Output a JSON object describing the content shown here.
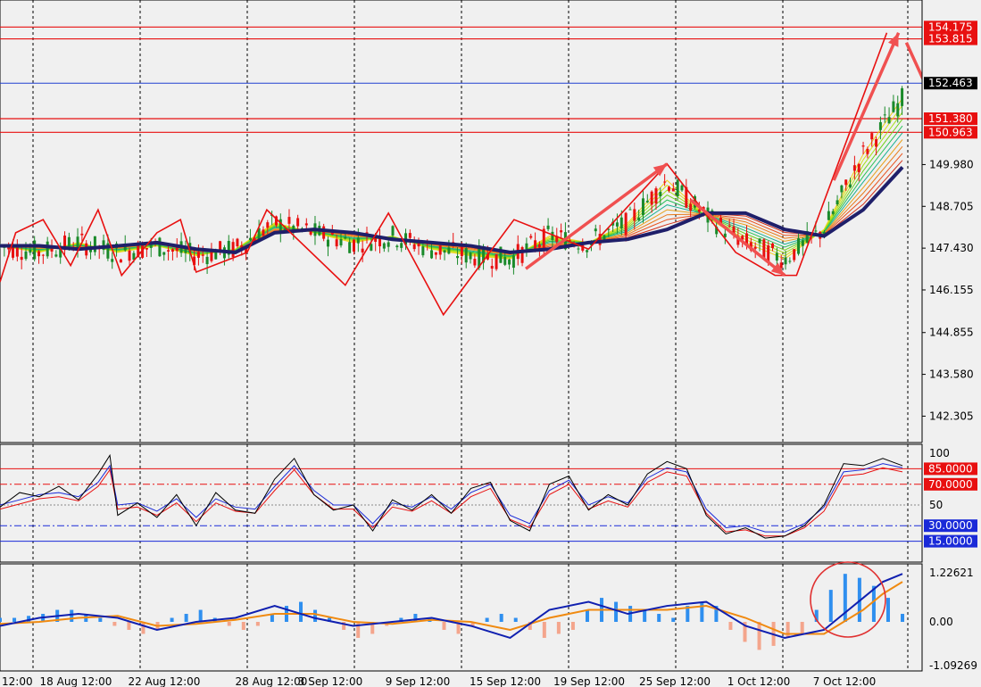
{
  "chart_data": [
    {
      "type": "candlestick",
      "panel": "price",
      "y_ticks": [
        154.175,
        153.815,
        152.463,
        151.38,
        150.963,
        149.98,
        148.705,
        147.43,
        146.155,
        144.855,
        143.58,
        142.305
      ],
      "y_tick_labels": [
        "149.980",
        "148.705",
        "147.430",
        "146.155",
        "144.855",
        "143.580",
        "142.305"
      ],
      "ylim": [
        141.5,
        155.0
      ],
      "horizontal_levels": [
        {
          "value": 154.175,
          "label": "154.175",
          "color": "#e81010"
        },
        {
          "value": 153.815,
          "label": "153.815",
          "color": "#e81010"
        },
        {
          "value": 152.463,
          "label": "152.463",
          "color": "#1f3fd0"
        },
        {
          "value": 151.38,
          "label": "151.380",
          "color": "#e81010"
        },
        {
          "value": 150.963,
          "label": "150.963",
          "color": "#e81010"
        }
      ],
      "zigzag": [
        [
          0,
          146.4
        ],
        [
          8,
          147.9
        ],
        [
          22,
          148.3
        ],
        [
          36,
          146.9
        ],
        [
          50,
          148.6
        ],
        [
          62,
          146.6
        ],
        [
          80,
          147.9
        ],
        [
          92,
          148.3
        ],
        [
          100,
          146.7
        ],
        [
          126,
          147.3
        ],
        [
          136,
          148.6
        ],
        [
          176,
          146.3
        ],
        [
          198,
          148.5
        ],
        [
          226,
          145.4
        ],
        [
          262,
          148.3
        ],
        [
          300,
          147.4
        ],
        [
          340,
          150.0
        ],
        [
          375,
          147.3
        ],
        [
          395,
          146.6
        ],
        [
          406,
          146.6
        ],
        [
          452,
          154.0
        ]
      ],
      "arrows": [
        {
          "from": [
            268,
            146.8
          ],
          "to": [
            340,
            150.0
          ]
        },
        {
          "from": [
            352,
            148.9
          ],
          "to": [
            400,
            146.6
          ]
        },
        {
          "from": [
            425,
            149.5
          ],
          "to": [
            458,
            154.0
          ]
        },
        {
          "from": [
            462,
            153.7
          ],
          "to": [
            478,
            151.6
          ]
        }
      ],
      "ma_slow": [
        [
          0,
          147.5
        ],
        [
          20,
          147.5
        ],
        [
          40,
          147.4
        ],
        [
          60,
          147.5
        ],
        [
          80,
          147.6
        ],
        [
          100,
          147.4
        ],
        [
          120,
          147.3
        ],
        [
          140,
          147.9
        ],
        [
          160,
          148.0
        ],
        [
          180,
          147.9
        ],
        [
          200,
          147.7
        ],
        [
          220,
          147.6
        ],
        [
          240,
          147.5
        ],
        [
          260,
          147.3
        ],
        [
          280,
          147.4
        ],
        [
          300,
          147.6
        ],
        [
          320,
          147.7
        ],
        [
          340,
          148.0
        ],
        [
          360,
          148.5
        ],
        [
          380,
          148.5
        ],
        [
          400,
          148.0
        ],
        [
          420,
          147.8
        ],
        [
          440,
          148.6
        ],
        [
          460,
          149.9
        ]
      ],
      "ma_fast": [
        [
          0,
          147.5
        ],
        [
          20,
          147.3
        ],
        [
          40,
          147.6
        ],
        [
          60,
          147.3
        ],
        [
          80,
          147.5
        ],
        [
          100,
          147.2
        ],
        [
          120,
          147.4
        ],
        [
          140,
          148.2
        ],
        [
          160,
          147.9
        ],
        [
          180,
          147.6
        ],
        [
          200,
          147.8
        ],
        [
          220,
          147.4
        ],
        [
          240,
          147.2
        ],
        [
          260,
          147.1
        ],
        [
          280,
          147.8
        ],
        [
          300,
          147.6
        ],
        [
          320,
          148.2
        ],
        [
          340,
          149.5
        ],
        [
          360,
          148.4
        ],
        [
          380,
          147.6
        ],
        [
          400,
          147.1
        ],
        [
          420,
          148.0
        ],
        [
          440,
          150.3
        ],
        [
          460,
          152.0
        ]
      ],
      "candles_seed": 147.5
    },
    {
      "type": "line",
      "panel": "oscillator",
      "y_ticks": [
        100,
        50
      ],
      "ylim": [
        0,
        100
      ],
      "levels": [
        {
          "value": 85,
          "label": "85.0000",
          "color": "#e81010"
        },
        {
          "value": 70,
          "label": "70.0000",
          "color": "#e81010"
        },
        {
          "value": 30,
          "label": "30.0000",
          "color": "#1a2ad8"
        },
        {
          "value": 15,
          "label": "15.0000",
          "color": "#1a2ad8"
        }
      ],
      "main": [
        [
          0,
          48
        ],
        [
          10,
          62
        ],
        [
          20,
          58
        ],
        [
          30,
          68
        ],
        [
          40,
          55
        ],
        [
          50,
          80
        ],
        [
          56,
          98
        ],
        [
          60,
          40
        ],
        [
          70,
          52
        ],
        [
          80,
          38
        ],
        [
          90,
          60
        ],
        [
          100,
          30
        ],
        [
          110,
          62
        ],
        [
          120,
          45
        ],
        [
          130,
          42
        ],
        [
          140,
          75
        ],
        [
          150,
          95
        ],
        [
          160,
          60
        ],
        [
          170,
          45
        ],
        [
          180,
          50
        ],
        [
          190,
          25
        ],
        [
          200,
          55
        ],
        [
          210,
          45
        ],
        [
          220,
          60
        ],
        [
          230,
          42
        ],
        [
          240,
          66
        ],
        [
          250,
          72
        ],
        [
          260,
          35
        ],
        [
          270,
          25
        ],
        [
          280,
          70
        ],
        [
          290,
          78
        ],
        [
          300,
          45
        ],
        [
          310,
          60
        ],
        [
          320,
          50
        ],
        [
          330,
          80
        ],
        [
          340,
          92
        ],
        [
          350,
          85
        ],
        [
          360,
          40
        ],
        [
          370,
          22
        ],
        [
          380,
          28
        ],
        [
          390,
          18
        ],
        [
          400,
          20
        ],
        [
          410,
          30
        ],
        [
          420,
          50
        ],
        [
          430,
          90
        ],
        [
          440,
          88
        ],
        [
          450,
          95
        ],
        [
          460,
          88
        ]
      ],
      "signal": [
        [
          0,
          50
        ],
        [
          10,
          55
        ],
        [
          20,
          60
        ],
        [
          30,
          62
        ],
        [
          40,
          58
        ],
        [
          50,
          72
        ],
        [
          56,
          88
        ],
        [
          60,
          50
        ],
        [
          70,
          52
        ],
        [
          80,
          44
        ],
        [
          90,
          56
        ],
        [
          100,
          38
        ],
        [
          110,
          56
        ],
        [
          120,
          48
        ],
        [
          130,
          46
        ],
        [
          140,
          68
        ],
        [
          150,
          88
        ],
        [
          160,
          64
        ],
        [
          170,
          50
        ],
        [
          180,
          50
        ],
        [
          190,
          32
        ],
        [
          200,
          52
        ],
        [
          210,
          48
        ],
        [
          220,
          58
        ],
        [
          230,
          46
        ],
        [
          240,
          62
        ],
        [
          250,
          70
        ],
        [
          260,
          40
        ],
        [
          270,
          32
        ],
        [
          280,
          64
        ],
        [
          290,
          74
        ],
        [
          300,
          50
        ],
        [
          310,
          58
        ],
        [
          320,
          52
        ],
        [
          330,
          76
        ],
        [
          340,
          86
        ],
        [
          350,
          82
        ],
        [
          360,
          46
        ],
        [
          370,
          28
        ],
        [
          380,
          30
        ],
        [
          390,
          24
        ],
        [
          400,
          24
        ],
        [
          410,
          32
        ],
        [
          420,
          48
        ],
        [
          430,
          82
        ],
        [
          440,
          84
        ],
        [
          450,
          90
        ],
        [
          460,
          86
        ]
      ]
    },
    {
      "type": "bar",
      "panel": "macd",
      "y_tick_labels": [
        "1.22621",
        "0.00",
        "-1.09269"
      ],
      "ylim": [
        -1.09269,
        1.22621
      ],
      "histogram": [
        0.1,
        0.1,
        0.15,
        0.2,
        0.3,
        0.3,
        0.2,
        0.1,
        -0.1,
        -0.2,
        -0.3,
        -0.2,
        0.1,
        0.2,
        0.3,
        0.1,
        -0.1,
        -0.2,
        -0.1,
        0.2,
        0.4,
        0.5,
        0.3,
        0.1,
        -0.2,
        -0.4,
        -0.3,
        -0.1,
        0.1,
        0.2,
        0.1,
        -0.2,
        -0.3,
        -0.1,
        0.1,
        0.2,
        0.1,
        -0.2,
        -0.4,
        -0.3,
        -0.2,
        0.3,
        0.6,
        0.5,
        0.4,
        0.3,
        0.2,
        0.1,
        0.4,
        0.5,
        0.4,
        -0.2,
        -0.5,
        -0.7,
        -0.6,
        -0.4,
        -0.3,
        0.3,
        0.8,
        1.2,
        1.1,
        0.9,
        0.6,
        0.2
      ],
      "line_main": [
        [
          0,
          -0.1
        ],
        [
          20,
          0.1
        ],
        [
          40,
          0.2
        ],
        [
          60,
          0.1
        ],
        [
          80,
          -0.2
        ],
        [
          100,
          0.0
        ],
        [
          120,
          0.1
        ],
        [
          140,
          0.4
        ],
        [
          160,
          0.1
        ],
        [
          180,
          -0.1
        ],
        [
          200,
          0.0
        ],
        [
          220,
          0.1
        ],
        [
          240,
          -0.1
        ],
        [
          260,
          -0.4
        ],
        [
          280,
          0.3
        ],
        [
          300,
          0.5
        ],
        [
          320,
          0.2
        ],
        [
          340,
          0.4
        ],
        [
          360,
          0.5
        ],
        [
          380,
          -0.1
        ],
        [
          400,
          -0.4
        ],
        [
          420,
          -0.2
        ],
        [
          440,
          0.6
        ],
        [
          450,
          1.0
        ],
        [
          460,
          1.2
        ]
      ],
      "line_signal": [
        [
          0,
          -0.05
        ],
        [
          20,
          0.0
        ],
        [
          40,
          0.1
        ],
        [
          60,
          0.15
        ],
        [
          80,
          -0.1
        ],
        [
          100,
          -0.05
        ],
        [
          120,
          0.05
        ],
        [
          140,
          0.2
        ],
        [
          160,
          0.2
        ],
        [
          180,
          0.0
        ],
        [
          200,
          -0.05
        ],
        [
          220,
          0.05
        ],
        [
          240,
          0.0
        ],
        [
          260,
          -0.2
        ],
        [
          280,
          0.1
        ],
        [
          300,
          0.3
        ],
        [
          320,
          0.3
        ],
        [
          340,
          0.3
        ],
        [
          360,
          0.4
        ],
        [
          380,
          0.1
        ],
        [
          400,
          -0.3
        ],
        [
          420,
          -0.3
        ],
        [
          440,
          0.3
        ],
        [
          450,
          0.7
        ],
        [
          460,
          1.0
        ]
      ]
    }
  ],
  "x_axis": {
    "tick_labels": [
      "12:00",
      "18 Aug 12:00",
      "22 Aug 12:00",
      "28 Aug 12:00",
      "3 Sep 12:00",
      "9 Sep 12:00",
      "15 Sep 12:00",
      "19 Sep 12:00",
      "25 Sep 12:00",
      "1 Oct 12:00",
      "7 Oct 12:00"
    ]
  },
  "colors": {
    "background": "#f0f0f0",
    "up_candle": "#1a8a2a",
    "down_candle": "#e81010",
    "zigzag": "#e81010",
    "arrow": "#f05050",
    "ma_slow": "#1f1f6a",
    "osc_main": "#000000",
    "osc_signal1": "#1a2ad8",
    "osc_signal2": "#e81010",
    "macd_pos": "#2f8fef",
    "macd_neg": "#f4a58c",
    "macd_line": "#1020b0",
    "macd_signal": "#f08a10"
  }
}
